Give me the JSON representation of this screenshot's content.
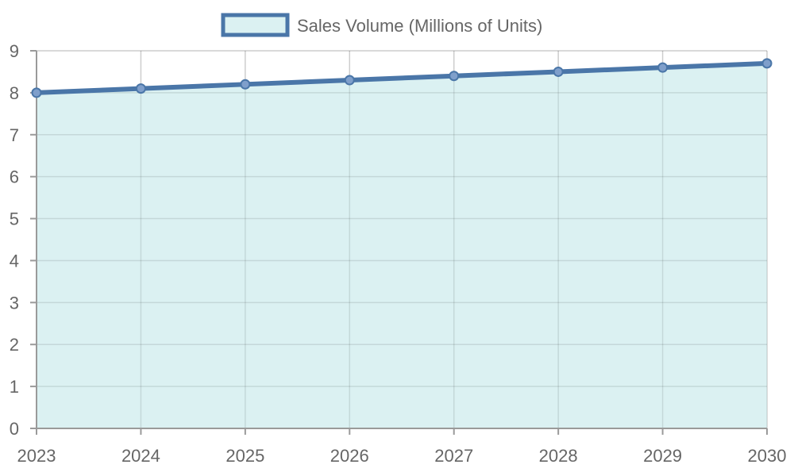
{
  "chart_data": {
    "type": "area",
    "categories": [
      "2023",
      "2024",
      "2025",
      "2026",
      "2027",
      "2028",
      "2029",
      "2030"
    ],
    "series": [
      {
        "name": "Sales Volume (Millions of Units)",
        "values": [
          8.0,
          8.1,
          8.2,
          8.3,
          8.4,
          8.5,
          8.6,
          8.7
        ]
      }
    ],
    "title": "",
    "xlabel": "",
    "ylabel": "",
    "ylim": [
      0,
      9
    ],
    "y_ticks": [
      "0",
      "1",
      "2",
      "3",
      "4",
      "5",
      "6",
      "7",
      "8",
      "9"
    ],
    "grid": true,
    "legend_position": "top-center"
  },
  "colors": {
    "line": "#4a76a8",
    "fill": "#dbf1f2",
    "point_fill": "#7f9fcb"
  }
}
